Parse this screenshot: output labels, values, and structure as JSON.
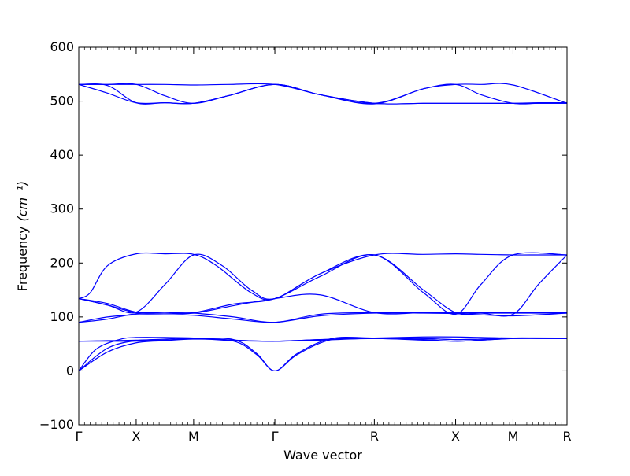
{
  "chart_data": {
    "type": "line",
    "title": "",
    "xlabel": "Wave vector",
    "ylabel": "Frequency",
    "ylabel_unit": "(cm⁻¹)",
    "ylim": [
      -100,
      600
    ],
    "yticks": [
      -100,
      0,
      100,
      200,
      300,
      400,
      500,
      600
    ],
    "grid": false,
    "legend": "none",
    "series_color": "#0000ff",
    "zero_line_color": "#000000",
    "xlim": [
      0,
      8.5
    ],
    "high_symmetry_points": [
      {
        "label": "Γ",
        "x": 0
      },
      {
        "label": "X",
        "x": 1
      },
      {
        "label": "M",
        "x": 2
      },
      {
        "label": "Γ",
        "x": 3.4142
      },
      {
        "label": "R",
        "x": 5.1463
      },
      {
        "label": "X",
        "x": 6.5605
      },
      {
        "label": "M",
        "x": 7.5605
      },
      {
        "label": "R",
        "x": 8.5
      }
    ],
    "branches": [
      {
        "band": "acoustic-1",
        "x": [
          0,
          0.5,
          1,
          1.5,
          2,
          2.7,
          3.1,
          3.4142,
          3.8,
          4.4,
          5.1463,
          6.0,
          6.5605,
          7.0,
          7.5605,
          8.0,
          8.5
        ],
        "y": [
          0,
          35,
          52,
          56,
          59,
          55,
          30,
          0,
          30,
          58,
          60,
          58,
          55,
          57,
          60,
          60,
          60
        ]
      },
      {
        "band": "acoustic-2",
        "x": [
          0,
          0.5,
          1,
          1.5,
          2,
          2.7,
          3.1,
          3.4142,
          3.8,
          4.4,
          5.1463,
          6.0,
          6.5605,
          7.0,
          7.5605,
          8.0,
          8.5
        ],
        "y": [
          0,
          42,
          56,
          57,
          60,
          58,
          32,
          0,
          32,
          60,
          61,
          60,
          58,
          59,
          61,
          61,
          61
        ]
      },
      {
        "band": "acoustic-3",
        "x": [
          0,
          0.3,
          0.7,
          1,
          1.5,
          2,
          2.7,
          3.4142,
          4.2,
          5.1463,
          6.0,
          6.5605,
          7.0,
          7.5605,
          8.5
        ],
        "y": [
          0,
          40,
          58,
          62,
          62,
          61,
          57,
          55,
          58,
          61,
          63,
          63,
          62,
          61,
          61
        ]
      },
      {
        "band": "optic-55-a",
        "x": [
          0,
          0.5,
          1,
          1.5,
          2,
          2.7,
          3.4142,
          4.2,
          5.1463,
          6.0,
          6.5605,
          7.0,
          7.5605,
          8.5
        ],
        "y": [
          55,
          55,
          55,
          57,
          60,
          56,
          55,
          57,
          60,
          57,
          55,
          57,
          60,
          60
        ]
      },
      {
        "band": "optic-55-b",
        "x": [
          0,
          0.5,
          1,
          1.5,
          2,
          2.7,
          3.4142,
          4.2,
          5.1463,
          6.0,
          6.5605,
          7.0,
          7.5605,
          8.5
        ],
        "y": [
          55,
          56,
          57,
          59,
          61,
          57,
          55,
          58,
          61,
          60,
          58,
          59,
          61,
          61
        ]
      },
      {
        "band": "optic-90-a",
        "x": [
          0,
          0.5,
          1,
          1.5,
          2,
          2.7,
          3.4142,
          4.2,
          5.1463,
          6.0,
          6.5605,
          7.0,
          7.5605,
          8.5
        ],
        "y": [
          90,
          100,
          104,
          104,
          103,
          96,
          90,
          102,
          107,
          107,
          106,
          104,
          102,
          107
        ]
      },
      {
        "band": "optic-90-b",
        "x": [
          0,
          0.5,
          1,
          1.5,
          2,
          2.7,
          3.4142,
          4.2,
          5.1463,
          6.0,
          6.5605,
          7.0,
          7.5605,
          8.5
        ],
        "y": [
          90,
          96,
          106,
          107,
          107,
          100,
          90,
          105,
          108,
          108,
          107,
          107,
          107,
          107
        ]
      },
      {
        "band": "optic-134-a",
        "x": [
          0,
          0.5,
          1,
          1.5,
          2,
          2.7,
          3.4142,
          4.2,
          5.1463,
          6.0,
          6.5605,
          7.0,
          7.5605,
          8.5
        ],
        "y": [
          134,
          122,
          108,
          107,
          107,
          121,
          134,
          141,
          108,
          108,
          108,
          108,
          108,
          108
        ]
      },
      {
        "band": "optic-134-b",
        "x": [
          0,
          0.5,
          1,
          1.5,
          2,
          2.7,
          3.4142,
          4.2,
          5.1463,
          6.0,
          6.5605,
          7.0,
          7.5605,
          8.5
        ],
        "y": [
          134,
          125,
          109,
          109,
          108,
          124,
          134,
          175,
          215,
          145,
          105,
          160,
          215,
          215
        ]
      },
      {
        "band": "optic-134-c",
        "x": [
          0,
          0.2,
          0.5,
          1,
          1.5,
          2,
          2.4,
          3.0,
          3.4142,
          4.2,
          5.1463,
          6.0,
          6.5605,
          7.0,
          7.5605,
          8.0,
          8.5
        ],
        "y": [
          134,
          145,
          195,
          217,
          217,
          216,
          195,
          145,
          134,
          180,
          215,
          216,
          217,
          216,
          215,
          215,
          215
        ]
      },
      {
        "band": "optic-134-d",
        "x": [
          0,
          0.5,
          1,
          1.5,
          2,
          2.5,
          3.0,
          3.4142,
          4.2,
          5.1463,
          6.0,
          6.5605,
          7.0,
          7.5605,
          8.0,
          8.5
        ],
        "y": [
          134,
          122,
          109,
          160,
          215,
          195,
          150,
          134,
          180,
          215,
          150,
          108,
          107,
          105,
          160,
          215
        ]
      },
      {
        "band": "high-1",
        "x": [
          0,
          0.5,
          1,
          1.5,
          2,
          2.6,
          3.4142,
          4.2,
          5.1463,
          6.0,
          6.5605,
          7.0,
          7.5605,
          8.5
        ],
        "y": [
          531,
          531,
          531,
          531,
          530,
          531,
          531,
          512,
          495,
          523,
          531,
          531,
          530,
          496
        ]
      },
      {
        "band": "high-2",
        "x": [
          0,
          0.5,
          1,
          1.5,
          2,
          2.6,
          3.4142,
          4.2,
          5.1463,
          6.0,
          6.5605,
          7.0,
          7.5605,
          8.0,
          8.5
        ],
        "y": [
          531,
          531,
          531,
          510,
          496,
          510,
          531,
          512,
          496,
          523,
          531,
          512,
          496,
          496,
          496
        ]
      },
      {
        "band": "high-3",
        "x": [
          0,
          0.5,
          1,
          1.5,
          2,
          2.6,
          3.4142,
          4.2,
          5.1463,
          6.0,
          6.5605,
          7.0,
          7.5605,
          8.0,
          8.5
        ],
        "y": [
          531,
          515,
          497,
          497,
          496,
          510,
          531,
          512,
          496,
          496,
          496,
          496,
          496,
          496,
          496
        ]
      },
      {
        "band": "high-4",
        "x": [
          0,
          0.5,
          1,
          1.5,
          2,
          2.6,
          3.4142,
          4.2,
          5.1463,
          6.0,
          6.5605,
          7.0,
          7.5605,
          8.0,
          8.5
        ],
        "y": [
          531,
          529,
          497,
          497,
          496,
          510,
          531,
          512,
          496,
          496,
          496,
          496,
          496,
          497,
          497
        ]
      }
    ]
  }
}
